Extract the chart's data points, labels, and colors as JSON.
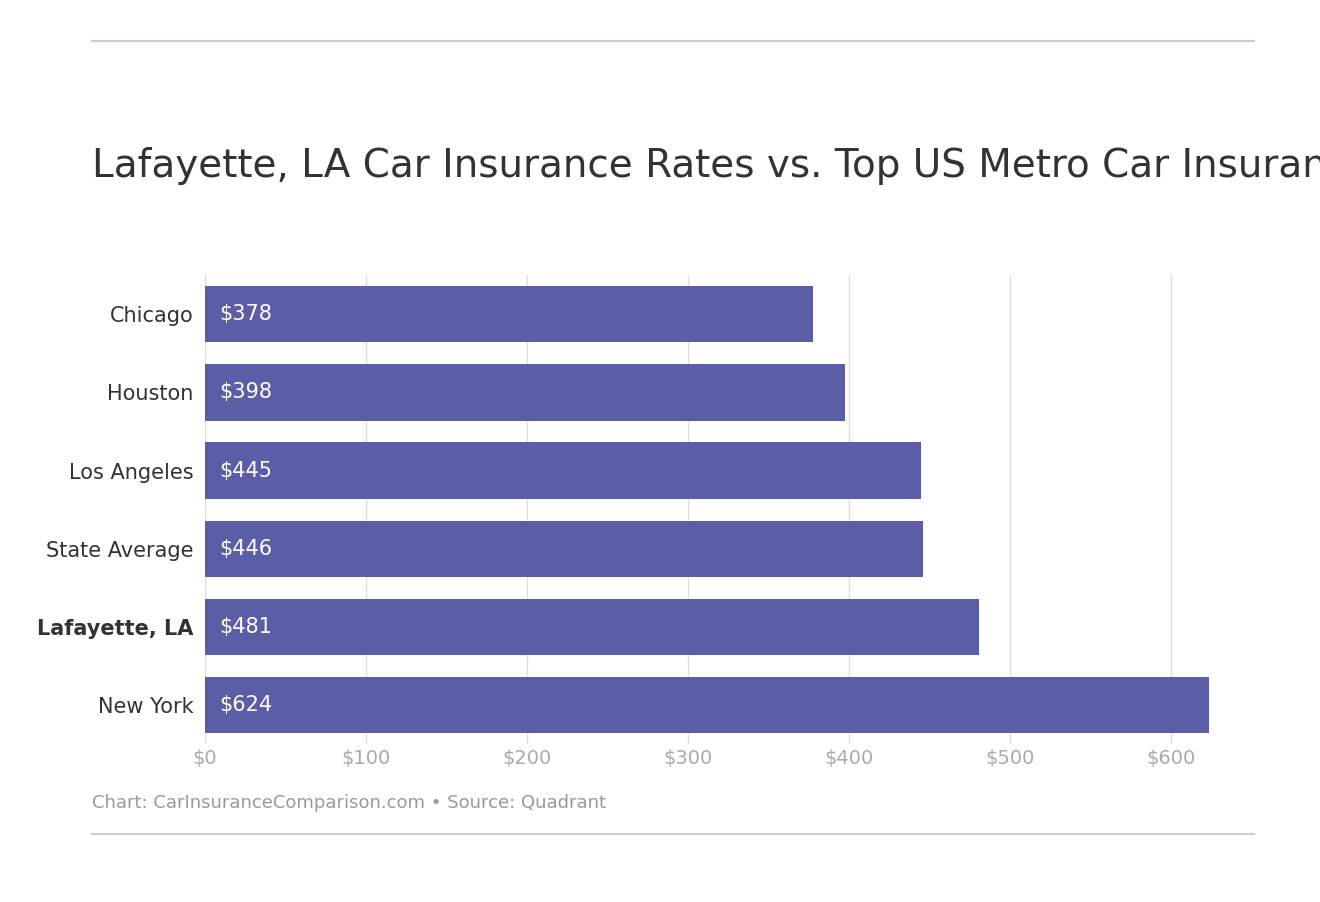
{
  "title": "Lafayette, LA Car Insurance Rates vs. Top US Metro Car Insurance Rates",
  "categories": [
    "Chicago",
    "Houston",
    "Los Angeles",
    "State Average",
    "Lafayette, LA",
    "New York"
  ],
  "values": [
    378,
    398,
    445,
    446,
    481,
    624
  ],
  "bold_category": "Lafayette, LA",
  "bar_color": "#5B5EA6",
  "label_color": "#ffffff",
  "background_color": "#ffffff",
  "text_color": "#333333",
  "tick_color": "#aaaaaa",
  "footer_text": "Chart: CarInsuranceComparison.com • Source: Quadrant",
  "footer_color": "#999999",
  "xlim": [
    0,
    660
  ],
  "xtick_values": [
    0,
    100,
    200,
    300,
    400,
    500,
    600
  ],
  "title_fontsize": 28,
  "label_fontsize": 15,
  "tick_fontsize": 14,
  "footer_fontsize": 13,
  "bar_height": 0.72,
  "top_line_color": "#cccccc",
  "bottom_line_color": "#cccccc",
  "grid_color": "#dddddd"
}
